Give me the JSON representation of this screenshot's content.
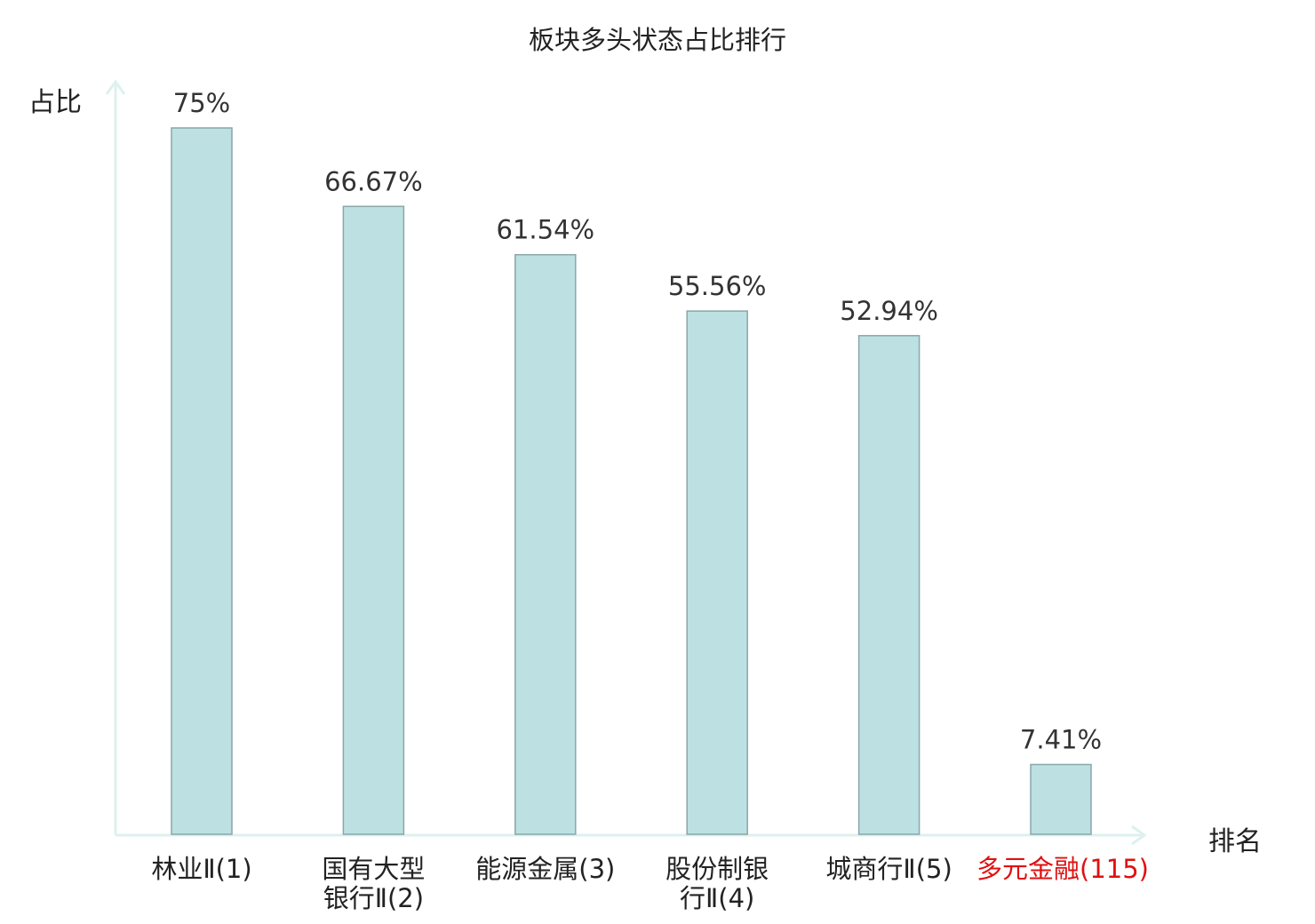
{
  "chart_data": {
    "type": "bar",
    "title": "板块多头状态占比排行",
    "ylabel": "占比",
    "xlabel": "排名",
    "ylim": [
      0,
      75
    ],
    "categories": [
      {
        "name": "林业Ⅱ",
        "rank": "(1)",
        "highlight": false
      },
      {
        "name": "国有大型银行Ⅱ",
        "rank": "(2)",
        "highlight": false
      },
      {
        "name": "能源金属",
        "rank": "(3)",
        "highlight": false
      },
      {
        "name": "股份制银行Ⅱ",
        "rank": "(4)",
        "highlight": false
      },
      {
        "name": "城商行Ⅱ",
        "rank": "(5)",
        "highlight": false
      },
      {
        "name": "多元金融",
        "rank": "(115)",
        "highlight": true
      }
    ],
    "values": [
      75,
      66.67,
      61.54,
      55.56,
      52.94,
      7.41
    ],
    "value_labels": [
      "75%",
      "66.67%",
      "61.54%",
      "55.56%",
      "52.94%",
      "7.41%"
    ],
    "grid": false,
    "colors": {
      "bar_fill": "#bde1e3",
      "bar_stroke": "#8aa6a8",
      "axis": "#ddf1ee",
      "highlight_text": "#e01010"
    }
  }
}
